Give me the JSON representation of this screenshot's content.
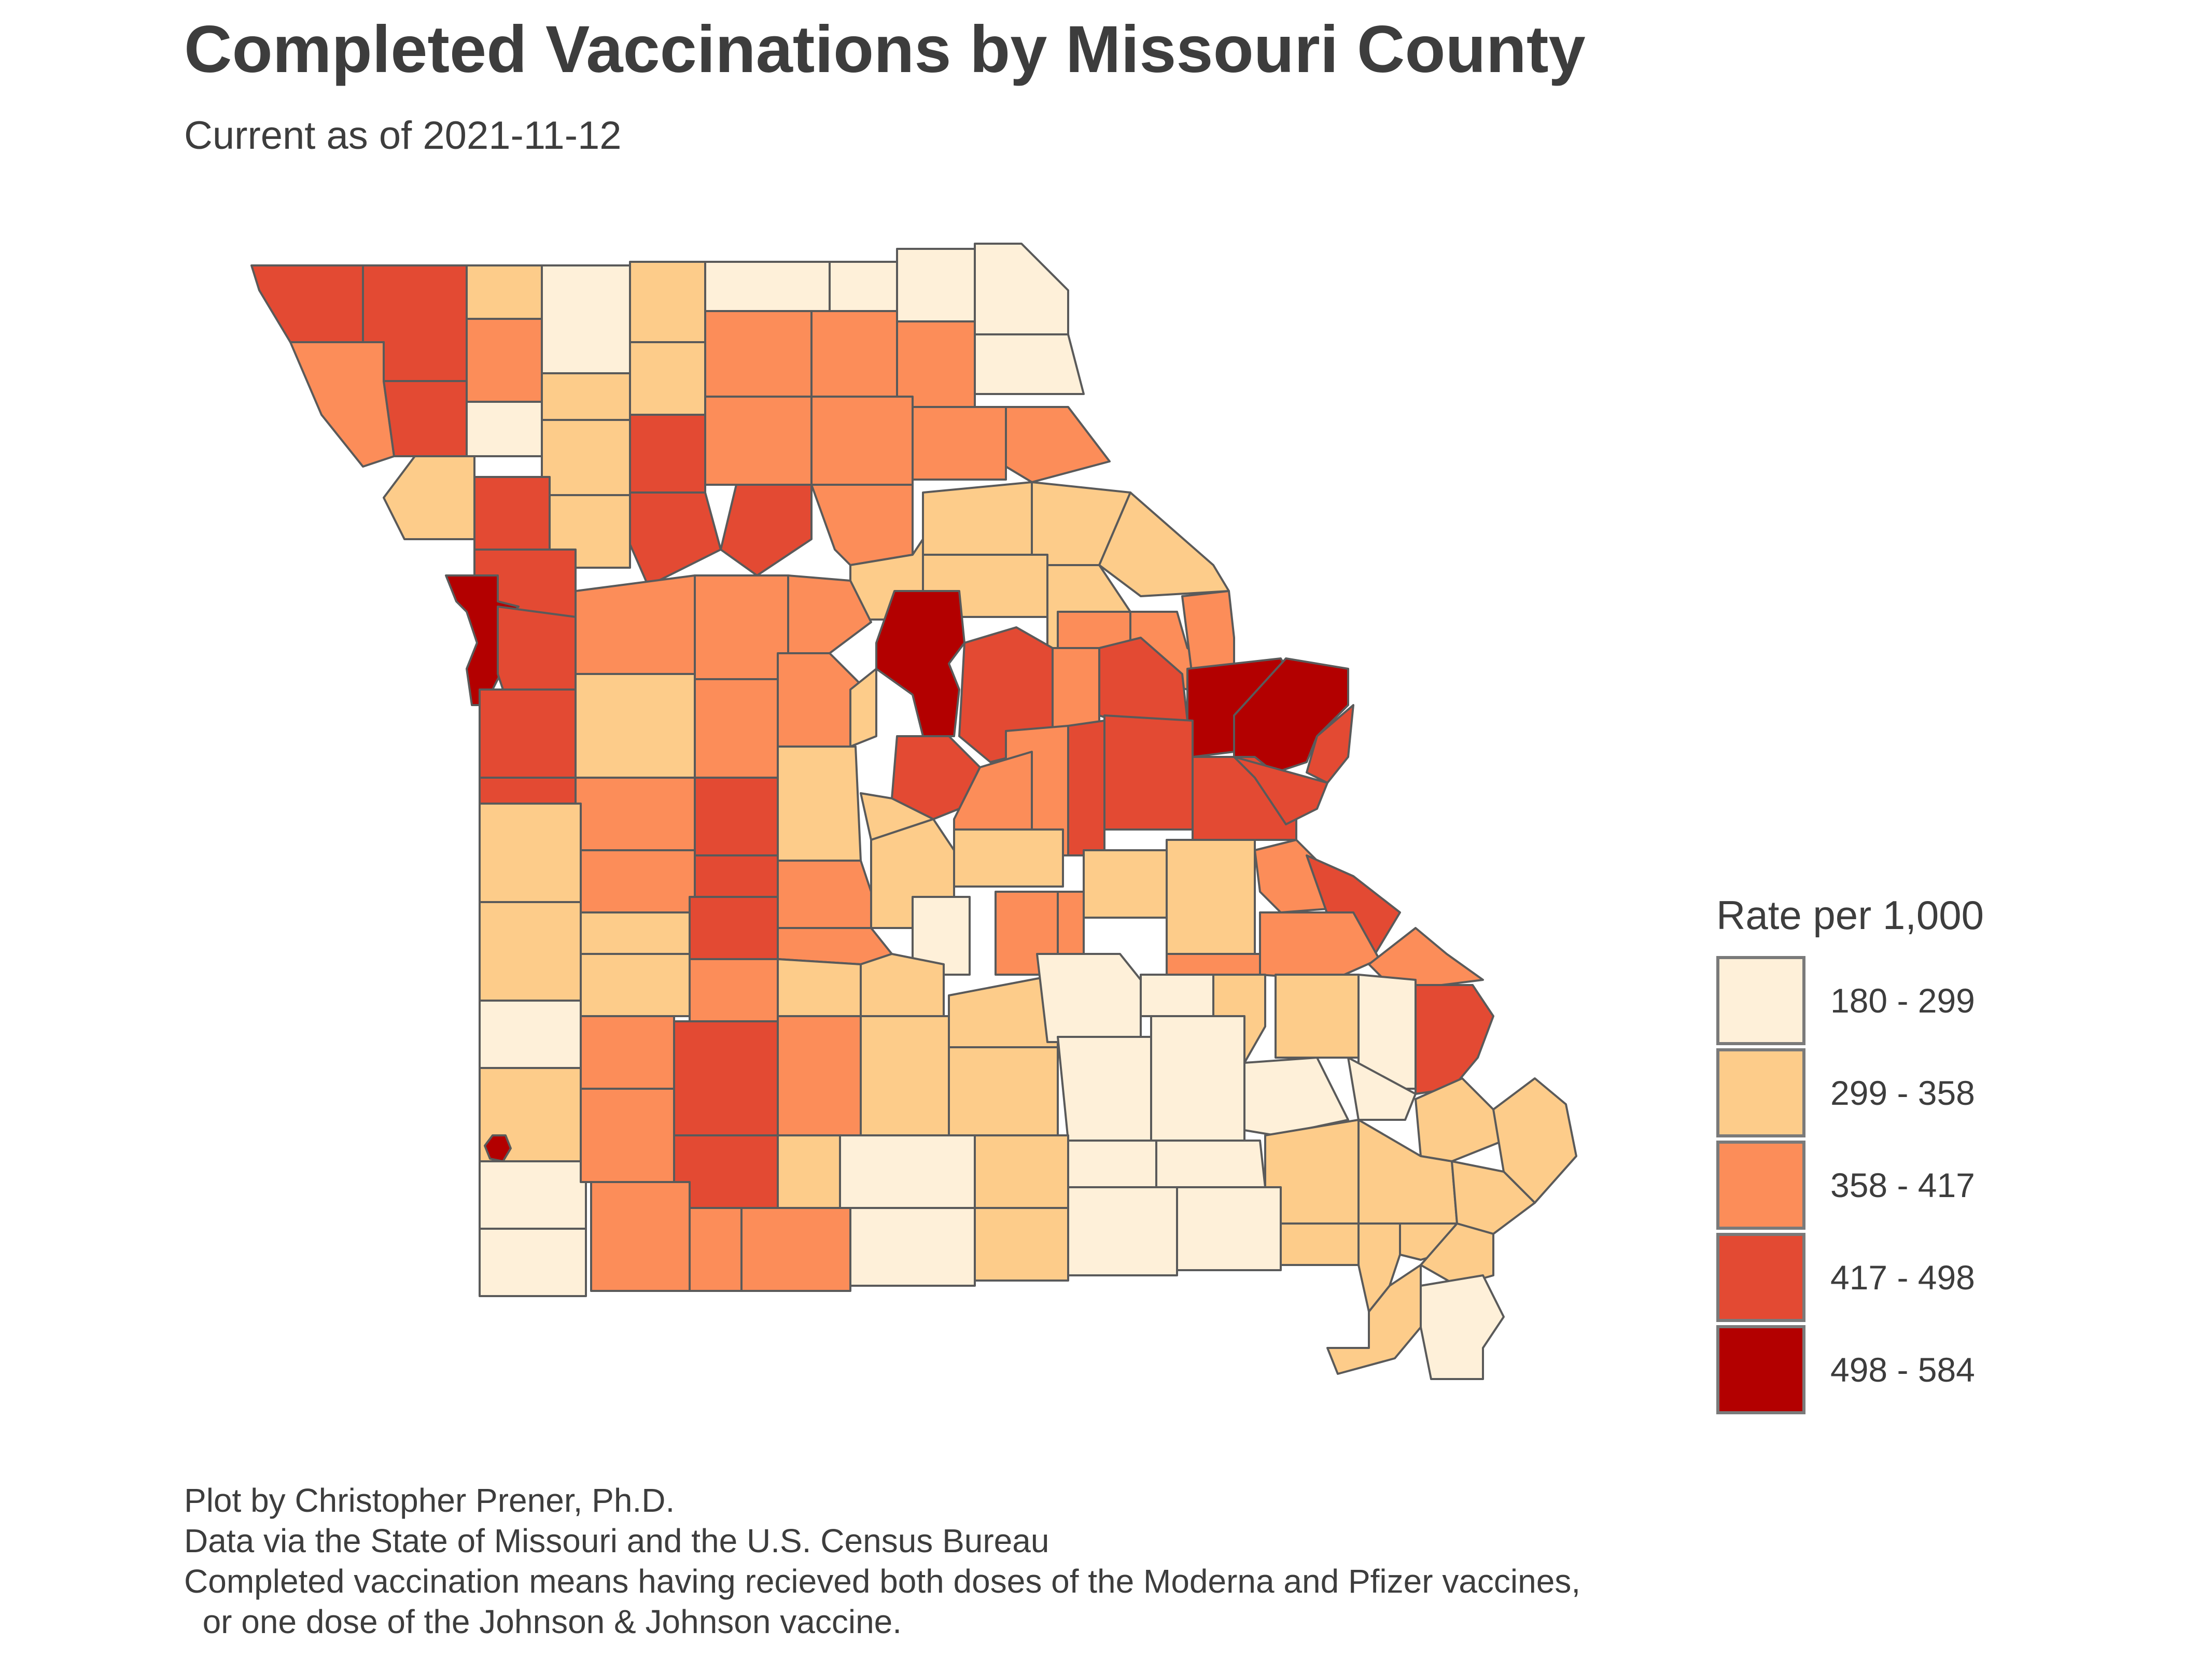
{
  "title": "Completed Vaccinations by Missouri County",
  "subtitle": "Current as of 2021-11-12",
  "legend": {
    "title": "Rate per 1,000",
    "position": "right",
    "items": [
      {
        "label": "180 - 299",
        "color": "#fef0d9"
      },
      {
        "label": "299 - 358",
        "color": "#fdcc8a"
      },
      {
        "label": "358 - 417",
        "color": "#fc8d59"
      },
      {
        "label": "417 - 498",
        "color": "#e34a33"
      },
      {
        "label": "498 - 584",
        "color": "#b30000"
      }
    ]
  },
  "colors": {
    "class1": "#fef0d9",
    "class2": "#fdcc8a",
    "class3": "#fc8d59",
    "class4": "#e34a33",
    "class5": "#b30000",
    "border": "#5a5a5a"
  },
  "caption": {
    "line1": "Plot by Christopher Prener, Ph.D.",
    "line2": "Data via the State of Missouri and the U.S. Census Bureau",
    "line3": "Completed vaccination means having recieved both doses of the Moderna and Pfizer vaccines,",
    "line4": "  or one dose of the Johnson & Johnson vaccine."
  },
  "chart_data": {
    "type": "choropleth",
    "region": "Missouri counties",
    "measure": "Rate per 1,000",
    "classes": [
      {
        "range": [
          180,
          299
        ],
        "color": "#fef0d9"
      },
      {
        "range": [
          299,
          358
        ],
        "color": "#fdcc8a"
      },
      {
        "range": [
          358,
          417
        ],
        "color": "#fc8d59"
      },
      {
        "range": [
          417,
          498
        ],
        "color": "#e34a33"
      },
      {
        "range": [
          498,
          584
        ],
        "color": "#b30000"
      }
    ]
  }
}
